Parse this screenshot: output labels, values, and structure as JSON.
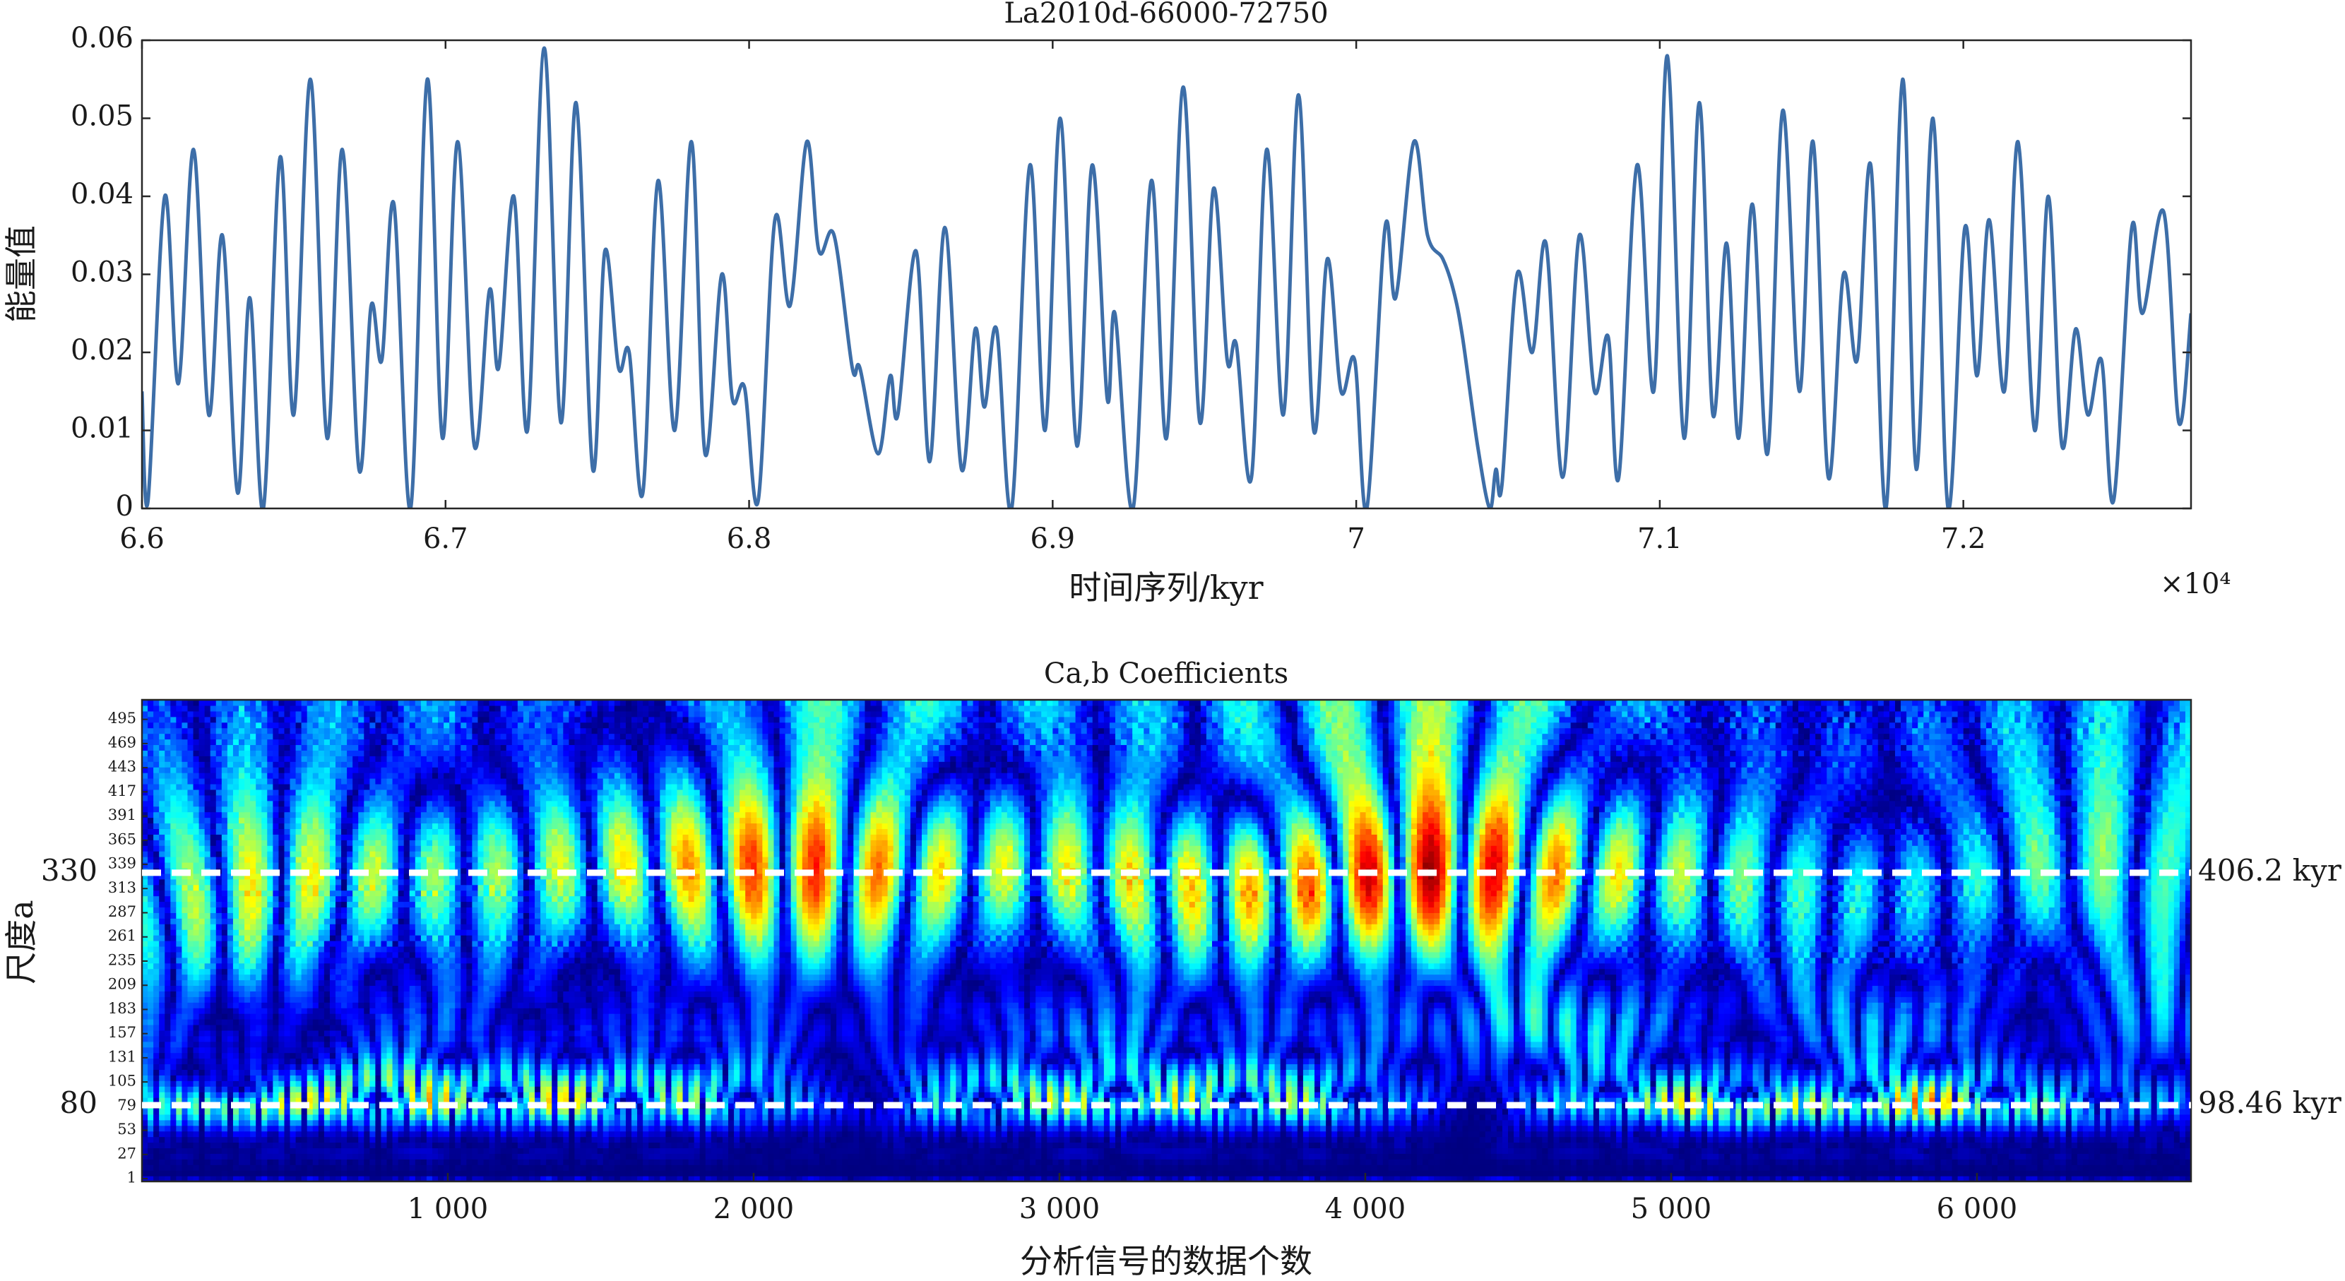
{
  "chart_data": [
    {
      "type": "line",
      "title": "La2010d-66000-72750",
      "x_label": "时间序列/kyr",
      "y_label": "能量值",
      "x_multiplier": "×10⁴",
      "color": "#3d6ea8",
      "xlim": [
        66000,
        72750
      ],
      "xticks": [
        {
          "value": 66000,
          "label": "6.6"
        },
        {
          "value": 67000,
          "label": "6.7"
        },
        {
          "value": 68000,
          "label": "6.8"
        },
        {
          "value": 69000,
          "label": "6.9"
        },
        {
          "value": 70000,
          "label": "7"
        },
        {
          "value": 71000,
          "label": "7.1"
        },
        {
          "value": 72000,
          "label": "7.2"
        }
      ],
      "ylim": [
        0,
        0.06
      ],
      "yticks": [
        0,
        0.01,
        0.02,
        0.03,
        0.04,
        0.05,
        0.06
      ],
      "x": [
        66000,
        66020,
        66075,
        66120,
        66170,
        66220,
        66265,
        66315,
        66355,
        66400,
        66455,
        66500,
        66555,
        66610,
        66660,
        66715,
        66755,
        66790,
        66830,
        66885,
        66940,
        66990,
        67040,
        67095,
        67145,
        67175,
        67225,
        67270,
        67325,
        67380,
        67430,
        67485,
        67525,
        67570,
        67605,
        67650,
        67700,
        67755,
        67810,
        67855,
        67910,
        67945,
        67985,
        68030,
        68085,
        68135,
        68190,
        68230,
        68280,
        68340,
        68365,
        68425,
        68465,
        68490,
        68550,
        68595,
        68645,
        68700,
        68745,
        68775,
        68815,
        68865,
        68925,
        68975,
        69025,
        69080,
        69130,
        69180,
        69205,
        69265,
        69325,
        69375,
        69430,
        69485,
        69530,
        69575,
        69605,
        69655,
        69705,
        69760,
        69810,
        69860,
        69905,
        69950,
        69995,
        70035,
        70095,
        70130,
        70190,
        70235,
        70285,
        70320,
        70350,
        70400,
        70440,
        70460,
        70480,
        70530,
        70580,
        70625,
        70680,
        70735,
        70785,
        70830,
        70865,
        70925,
        70980,
        71025,
        71080,
        71130,
        71175,
        71220,
        71260,
        71305,
        71355,
        71405,
        71460,
        71505,
        71555,
        71605,
        71650,
        71695,
        71745,
        71800,
        71845,
        71900,
        71950,
        72005,
        72045,
        72085,
        72135,
        72180,
        72235,
        72280,
        72325,
        72370,
        72410,
        72455,
        72495,
        72555,
        72590,
        72660,
        72710,
        72750
      ],
      "values": [
        0.015,
        0.001,
        0.04,
        0.016,
        0.046,
        0.012,
        0.035,
        0.002,
        0.027,
        0,
        0.045,
        0.012,
        0.055,
        0.009,
        0.046,
        0.005,
        0.026,
        0.019,
        0.039,
        0,
        0.055,
        0.009,
        0.047,
        0.008,
        0.028,
        0.018,
        0.04,
        0.01,
        0.059,
        0.011,
        0.052,
        0.005,
        0.033,
        0.018,
        0.02,
        0.002,
        0.042,
        0.01,
        0.047,
        0.007,
        0.03,
        0.014,
        0.0155,
        0.001,
        0.037,
        0.026,
        0.047,
        0.033,
        0.035,
        0.018,
        0.018,
        0.007,
        0.017,
        0.012,
        0.033,
        0.006,
        0.036,
        0.005,
        0.023,
        0.013,
        0.023,
        0,
        0.044,
        0.01,
        0.05,
        0.008,
        0.044,
        0.014,
        0.025,
        0,
        0.042,
        0.009,
        0.054,
        0.011,
        0.041,
        0.019,
        0.021,
        0.004,
        0.046,
        0.012,
        0.053,
        0.01,
        0.032,
        0.015,
        0.019,
        0,
        0.036,
        0.027,
        0.047,
        0.035,
        0.032,
        0.028,
        0.022,
        0.008,
        0,
        0.005,
        0.003,
        0.03,
        0.02,
        0.034,
        0.004,
        0.035,
        0.015,
        0.022,
        0.004,
        0.044,
        0.015,
        0.058,
        0.009,
        0.052,
        0.012,
        0.034,
        0.009,
        0.039,
        0.007,
        0.051,
        0.015,
        0.047,
        0.004,
        0.03,
        0.019,
        0.044,
        0,
        0.055,
        0.005,
        0.05,
        0,
        0.036,
        0.017,
        0.037,
        0.015,
        0.047,
        0.01,
        0.04,
        0.008,
        0.023,
        0.012,
        0.019,
        0.001,
        0.036,
        0.025,
        0.038,
        0.011,
        0.025
      ]
    },
    {
      "type": "scalogram",
      "title": "Ca,b Coefficients",
      "x_label": "分析信号的数据个数",
      "y_label": "尺度a",
      "colormap": "jet",
      "xlim": [
        0,
        6700
      ],
      "xticks": [
        {
          "value": 1000,
          "label": "1 000"
        },
        {
          "value": 2000,
          "label": "2 000"
        },
        {
          "value": 3000,
          "label": "3 000"
        },
        {
          "value": 4000,
          "label": "4 000"
        },
        {
          "value": 5000,
          "label": "5 000"
        },
        {
          "value": 6000,
          "label": "6 000"
        }
      ],
      "ylim": [
        -2,
        516
      ],
      "yticks": [
        1,
        27,
        53,
        79,
        105,
        131,
        157,
        183,
        209,
        235,
        261,
        287,
        313,
        339,
        365,
        391,
        417,
        443,
        469,
        495
      ],
      "reference_lines": [
        {
          "value": 330,
          "text": "406.2 kyr"
        },
        {
          "value": 80,
          "text": "98.46 kyr"
        }
      ]
    }
  ]
}
